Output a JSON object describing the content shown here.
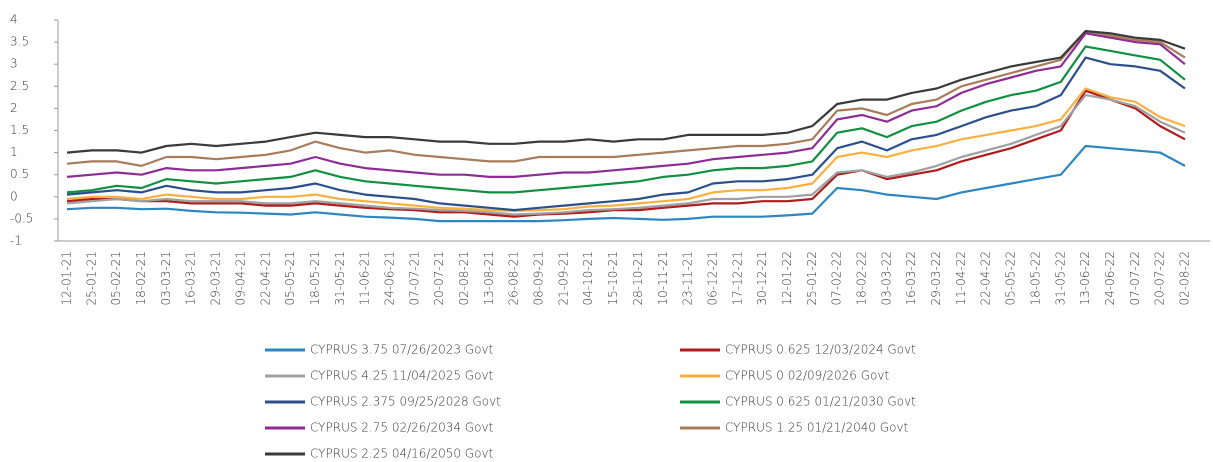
{
  "chart_data": {
    "type": "line",
    "categories": [
      "12-01-21",
      "25-01-21",
      "05-02-21",
      "18-02-21",
      "03-03-21",
      "16-03-21",
      "29-03-21",
      "09-04-21",
      "22-04-21",
      "05-05-21",
      "18-05-21",
      "31-05-21",
      "11-06-21",
      "24-06-21",
      "07-07-21",
      "20-07-21",
      "02-08-21",
      "13-08-21",
      "26-08-21",
      "08-09-21",
      "21-09-21",
      "04-10-21",
      "15-10-21",
      "28-10-21",
      "10-11-21",
      "23-11-21",
      "06-12-21",
      "17-12-21",
      "30-12-21",
      "12-01-22",
      "25-01-22",
      "07-02-22",
      "18-02-22",
      "03-03-22",
      "16-03-22",
      "29-03-22",
      "11-04-22",
      "22-04-22",
      "05-05-22",
      "18-05-22",
      "31-05-22",
      "13-06-22",
      "24-06-22",
      "07-07-22",
      "20-07-22",
      "02-08-22"
    ],
    "ylim": [
      -1,
      4
    ],
    "yticks": [
      -1,
      -0.5,
      0,
      0.5,
      1,
      1.5,
      2,
      2.5,
      3,
      3.5,
      4
    ],
    "grid": false,
    "series": [
      {
        "name": "CYPRUS 3.75 07/26/2023 Govt",
        "color": "#2e86c1",
        "values": [
          -0.28,
          -0.25,
          -0.25,
          -0.28,
          -0.27,
          -0.32,
          -0.35,
          -0.36,
          -0.38,
          -0.4,
          -0.35,
          -0.4,
          -0.45,
          -0.47,
          -0.5,
          -0.55,
          -0.55,
          -0.55,
          -0.55,
          -0.55,
          -0.53,
          -0.5,
          -0.48,
          -0.5,
          -0.52,
          -0.5,
          -0.45,
          -0.45,
          -0.45,
          -0.42,
          -0.38,
          0.2,
          0.15,
          0.05,
          0.0,
          -0.05,
          0.1,
          0.2,
          0.3,
          0.4,
          0.5,
          1.15,
          1.1,
          1.05,
          1.0,
          0.7
        ]
      },
      {
        "name": "CYPRUS 0.625 12/03/2024 Govt",
        "color": "#b01c1c",
        "values": [
          -0.1,
          -0.05,
          -0.05,
          -0.1,
          -0.1,
          -0.15,
          -0.15,
          -0.15,
          -0.2,
          -0.2,
          -0.15,
          -0.2,
          -0.25,
          -0.28,
          -0.3,
          -0.35,
          -0.35,
          -0.4,
          -0.45,
          -0.4,
          -0.38,
          -0.35,
          -0.3,
          -0.3,
          -0.25,
          -0.2,
          -0.15,
          -0.15,
          -0.1,
          -0.1,
          -0.05,
          0.5,
          0.6,
          0.4,
          0.5,
          0.6,
          0.8,
          0.95,
          1.1,
          1.3,
          1.5,
          2.4,
          2.2,
          2.0,
          1.6,
          1.3
        ]
      },
      {
        "name": "CYPRUS 4.25 11/04/2025 Govt",
        "color": "#a0a0a0",
        "values": [
          -0.15,
          -0.1,
          -0.05,
          -0.1,
          -0.05,
          -0.1,
          -0.1,
          -0.1,
          -0.15,
          -0.15,
          -0.1,
          -0.15,
          -0.2,
          -0.25,
          -0.27,
          -0.3,
          -0.32,
          -0.35,
          -0.4,
          -0.38,
          -0.35,
          -0.3,
          -0.28,
          -0.25,
          -0.2,
          -0.15,
          -0.05,
          -0.05,
          0.0,
          0.0,
          0.05,
          0.55,
          0.6,
          0.45,
          0.55,
          0.7,
          0.9,
          1.05,
          1.2,
          1.4,
          1.6,
          2.3,
          2.2,
          2.05,
          1.7,
          1.45
        ]
      },
      {
        "name": "CYPRUS 0 02/09/2026 Govt",
        "color": "#f9b040",
        "values": [
          -0.05,
          0.0,
          0.0,
          -0.05,
          0.05,
          0.0,
          -0.05,
          -0.05,
          0.0,
          0.0,
          0.05,
          -0.05,
          -0.1,
          -0.15,
          -0.2,
          -0.25,
          -0.27,
          -0.3,
          -0.32,
          -0.3,
          -0.28,
          -0.22,
          -0.2,
          -0.15,
          -0.1,
          -0.05,
          0.1,
          0.15,
          0.15,
          0.2,
          0.3,
          0.9,
          1.0,
          0.9,
          1.05,
          1.15,
          1.3,
          1.4,
          1.5,
          1.6,
          1.75,
          2.45,
          2.25,
          2.15,
          1.8,
          1.6
        ]
      },
      {
        "name": "CYPRUS 2.375 09/25/2028 Govt",
        "color": "#2c4f8c",
        "values": [
          0.05,
          0.1,
          0.15,
          0.1,
          0.25,
          0.15,
          0.1,
          0.1,
          0.15,
          0.2,
          0.3,
          0.15,
          0.05,
          0.0,
          -0.05,
          -0.15,
          -0.2,
          -0.25,
          -0.3,
          -0.25,
          -0.2,
          -0.15,
          -0.1,
          -0.05,
          0.05,
          0.1,
          0.3,
          0.35,
          0.35,
          0.4,
          0.5,
          1.1,
          1.25,
          1.05,
          1.3,
          1.4,
          1.6,
          1.8,
          1.95,
          2.05,
          2.3,
          3.15,
          3.0,
          2.95,
          2.85,
          2.45
        ]
      },
      {
        "name": "CYPRUS 0.625 01/21/2030 Govt",
        "color": "#109040",
        "values": [
          0.1,
          0.15,
          0.25,
          0.2,
          0.4,
          0.35,
          0.3,
          0.35,
          0.4,
          0.45,
          0.6,
          0.45,
          0.35,
          0.3,
          0.25,
          0.2,
          0.15,
          0.1,
          0.1,
          0.15,
          0.2,
          0.25,
          0.3,
          0.35,
          0.45,
          0.5,
          0.6,
          0.65,
          0.65,
          0.7,
          0.8,
          1.45,
          1.55,
          1.35,
          1.6,
          1.7,
          1.95,
          2.15,
          2.3,
          2.4,
          2.6,
          3.4,
          3.3,
          3.2,
          3.1,
          2.65
        ]
      },
      {
        "name": "CYPRUS 2.75 02/26/2034 Govt",
        "color": "#8e2c96",
        "values": [
          0.45,
          0.5,
          0.55,
          0.5,
          0.65,
          0.6,
          0.6,
          0.65,
          0.7,
          0.75,
          0.9,
          0.75,
          0.65,
          0.6,
          0.55,
          0.5,
          0.5,
          0.45,
          0.45,
          0.5,
          0.55,
          0.55,
          0.6,
          0.65,
          0.7,
          0.75,
          0.85,
          0.9,
          0.95,
          1.0,
          1.1,
          1.75,
          1.85,
          1.7,
          1.95,
          2.05,
          2.35,
          2.55,
          2.7,
          2.85,
          2.95,
          3.7,
          3.6,
          3.5,
          3.45,
          3.0
        ]
      },
      {
        "name": "CYPRUS 1.25 01/21/2040 Govt",
        "color": "#a87c5a",
        "values": [
          0.75,
          0.8,
          0.8,
          0.7,
          0.9,
          0.9,
          0.85,
          0.9,
          0.95,
          1.05,
          1.25,
          1.1,
          1.0,
          1.05,
          0.95,
          0.9,
          0.85,
          0.8,
          0.8,
          0.9,
          0.9,
          0.9,
          0.9,
          0.95,
          1.0,
          1.05,
          1.1,
          1.15,
          1.15,
          1.2,
          1.3,
          1.95,
          2.0,
          1.85,
          2.1,
          2.2,
          2.5,
          2.65,
          2.8,
          2.95,
          3.1,
          3.75,
          3.65,
          3.55,
          3.5,
          3.15
        ]
      },
      {
        "name": "CYPRUS 2.25 04/16/2050 Govt",
        "color": "#3a3a3a",
        "values": [
          1.0,
          1.05,
          1.05,
          1.0,
          1.15,
          1.2,
          1.15,
          1.2,
          1.25,
          1.35,
          1.45,
          1.4,
          1.35,
          1.35,
          1.3,
          1.25,
          1.25,
          1.2,
          1.2,
          1.25,
          1.25,
          1.3,
          1.25,
          1.3,
          1.3,
          1.4,
          1.4,
          1.4,
          1.4,
          1.45,
          1.6,
          2.1,
          2.2,
          2.2,
          2.35,
          2.45,
          2.65,
          2.8,
          2.95,
          3.05,
          3.15,
          3.75,
          3.7,
          3.6,
          3.55,
          3.35
        ]
      }
    ]
  }
}
